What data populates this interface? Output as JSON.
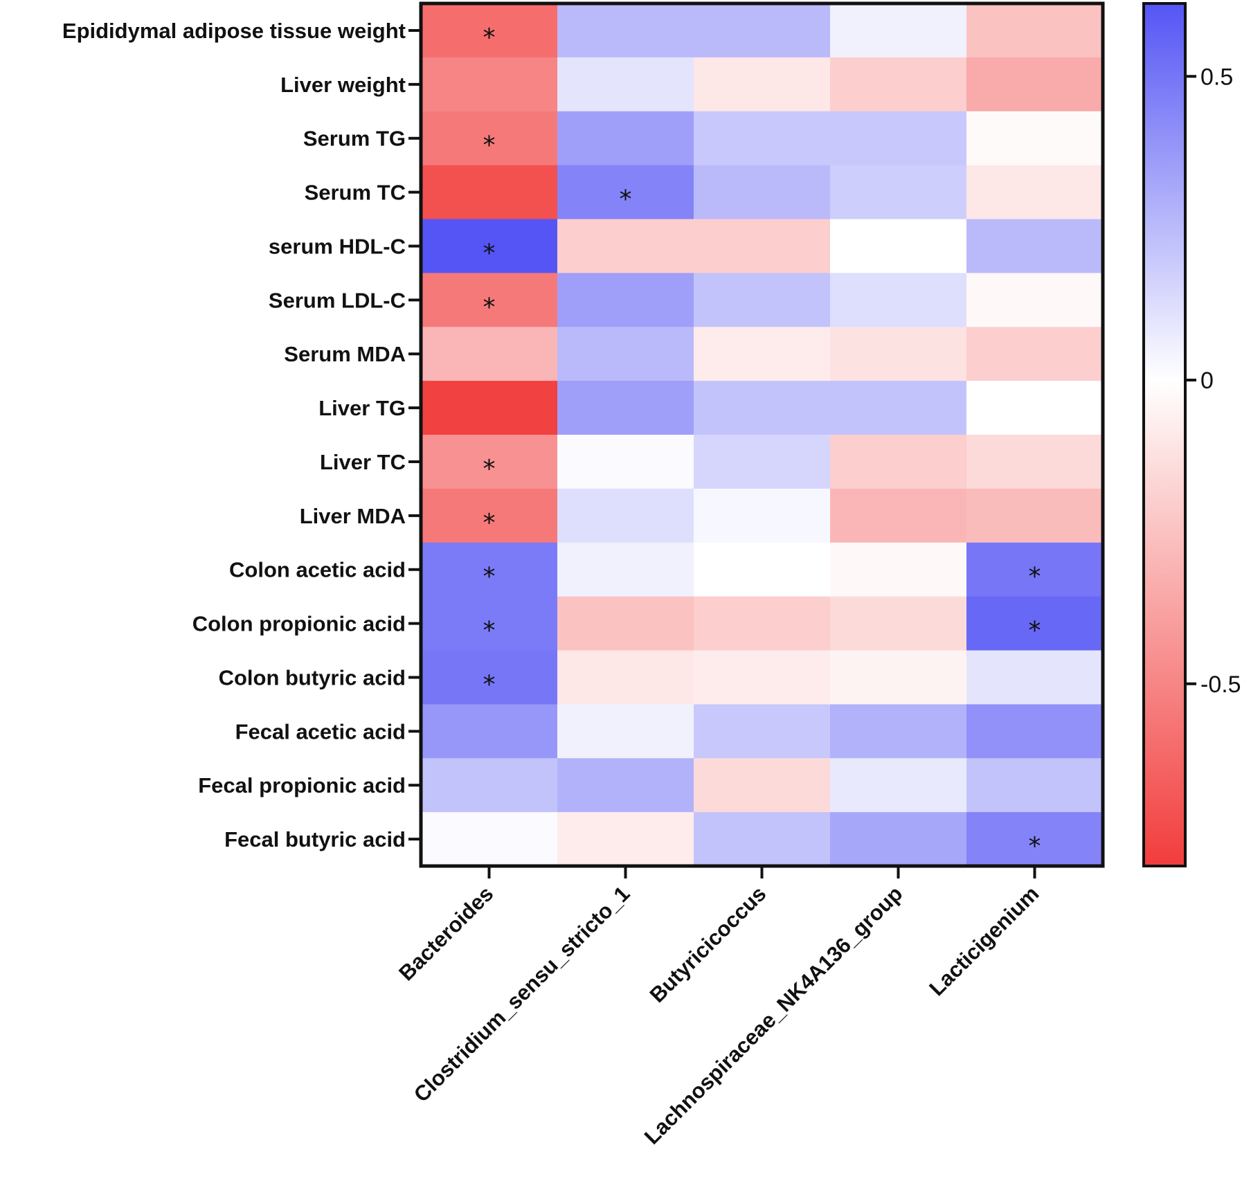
{
  "chart_data": {
    "type": "heatmap",
    "title": "",
    "xlabel": "",
    "ylabel": "",
    "columns": [
      "Bacteroides",
      "Clostridium_sensu_stricto_1",
      "Butyricicoccus",
      "Lachnospiraceae_NK4A136_group",
      "Lacticigenium"
    ],
    "rows": [
      "Epididymal adipose tissue weight",
      "Liver weight",
      "Serum TG",
      "Serum TC",
      "serum HDL-C",
      "Serum LDL-C",
      "Serum MDA",
      "Liver TG",
      "Liver TC",
      "Liver MDA",
      "Colon acetic acid",
      "Colon propionic acid",
      "Colon butyric acid",
      "Fecal acetic acid",
      "Fecal propionic acid",
      "Fecal butyric acid"
    ],
    "values": [
      [
        -0.6,
        0.25,
        0.25,
        0.05,
        -0.25
      ],
      [
        -0.5,
        0.1,
        -0.1,
        -0.2,
        -0.35
      ],
      [
        -0.55,
        0.35,
        0.2,
        0.2,
        -0.02
      ],
      [
        -0.72,
        0.45,
        0.25,
        0.18,
        -0.1
      ],
      [
        0.62,
        -0.2,
        -0.2,
        0.0,
        0.25
      ],
      [
        -0.55,
        0.35,
        0.22,
        0.12,
        -0.03
      ],
      [
        -0.3,
        0.25,
        -0.08,
        -0.12,
        -0.2
      ],
      [
        -0.78,
        0.35,
        0.22,
        0.22,
        0.0
      ],
      [
        -0.45,
        0.02,
        0.15,
        -0.2,
        -0.15
      ],
      [
        -0.55,
        0.12,
        0.03,
        -0.3,
        -0.28
      ],
      [
        0.48,
        0.05,
        0.0,
        -0.03,
        0.5
      ],
      [
        0.48,
        -0.25,
        -0.2,
        -0.15,
        0.55
      ],
      [
        0.5,
        -0.1,
        -0.08,
        -0.05,
        0.1
      ],
      [
        0.38,
        0.05,
        0.2,
        0.28,
        0.4
      ],
      [
        0.22,
        0.28,
        -0.15,
        0.08,
        0.22
      ],
      [
        0.02,
        -0.08,
        0.22,
        0.32,
        0.45
      ]
    ],
    "significance": [
      [
        true,
        false,
        false,
        false,
        false
      ],
      [
        false,
        false,
        false,
        false,
        false
      ],
      [
        true,
        false,
        false,
        false,
        false
      ],
      [
        false,
        true,
        false,
        false,
        false
      ],
      [
        true,
        false,
        false,
        false,
        false
      ],
      [
        true,
        false,
        false,
        false,
        false
      ],
      [
        false,
        false,
        false,
        false,
        false
      ],
      [
        false,
        false,
        false,
        false,
        false
      ],
      [
        true,
        false,
        false,
        false,
        false
      ],
      [
        true,
        false,
        false,
        false,
        false
      ],
      [
        true,
        false,
        false,
        false,
        true
      ],
      [
        true,
        false,
        false,
        false,
        true
      ],
      [
        true,
        false,
        false,
        false,
        false
      ],
      [
        false,
        false,
        false,
        false,
        false
      ],
      [
        false,
        false,
        false,
        false,
        false
      ],
      [
        false,
        false,
        false,
        false,
        true
      ]
    ],
    "significance_marker": "*",
    "colorbar": {
      "range": [
        -0.8,
        0.62
      ],
      "ticks": [
        0.5,
        0,
        -0.5
      ],
      "tick_labels": [
        "0.5",
        "0",
        "-0.5"
      ],
      "colors": {
        "negative": "#f23c3c",
        "zero": "#ffffff",
        "positive": "#5555f5"
      },
      "placement": "right"
    },
    "border_color": "#111111"
  }
}
